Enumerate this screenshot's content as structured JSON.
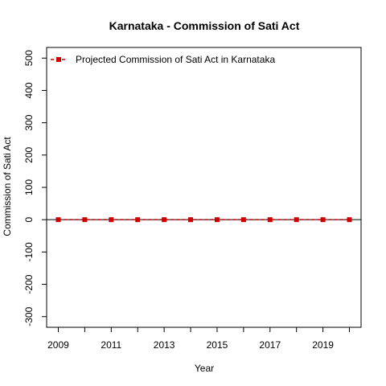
{
  "chart_data": {
    "type": "line",
    "title": "Karnataka  -  Commission of Sati Act",
    "xlabel": "Year",
    "ylabel": "Commission of Sati Act",
    "x": [
      2009,
      2010,
      2011,
      2012,
      2013,
      2014,
      2015,
      2016,
      2017,
      2018,
      2019,
      2020
    ],
    "series": [
      {
        "name": "Projected  Commission of Sati Act  in  Karnataka",
        "values": [
          0,
          0,
          0,
          0,
          0,
          0,
          0,
          0,
          0,
          0,
          0,
          0
        ],
        "color": "#cc0000",
        "line_style": "dashed",
        "marker": "square"
      }
    ],
    "x_tick_labels": [
      "2009",
      "2011",
      "2013",
      "2015",
      "2017",
      "2019"
    ],
    "y_ticks": [
      -300,
      -200,
      -100,
      0,
      100,
      200,
      300,
      400,
      500
    ],
    "y_tick_labels": [
      "-300",
      "-200",
      "-100",
      "0",
      "100",
      "200",
      "300",
      "400",
      "500"
    ],
    "xlim": [
      2008.56,
      2020.44
    ],
    "ylim": [
      -333,
      533
    ],
    "reference_line_y": 0,
    "legend_position": "top-left",
    "grid": false
  }
}
